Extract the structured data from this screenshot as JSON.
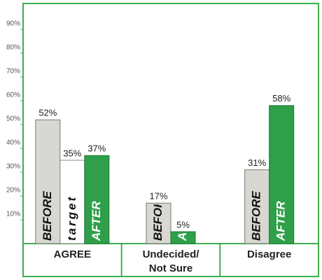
{
  "chart_data": {
    "type": "bar",
    "categories": [
      "AGREE",
      "Undecided/ Not Sure",
      "Disagree"
    ],
    "series": [
      {
        "name": "BEFORE",
        "color": "#d9d7d1",
        "values": [
          52,
          17,
          31
        ],
        "value_labels": [
          "52%",
          "17%",
          "31%"
        ]
      },
      {
        "name": "target",
        "color": "#ffffff",
        "values": [
          35,
          null,
          null
        ],
        "value_labels": [
          "35%",
          null,
          null
        ]
      },
      {
        "name": "AFTER",
        "color": "#2f9f4a",
        "values": [
          37,
          5,
          58
        ],
        "value_labels": [
          "37%",
          "5%",
          "58%"
        ]
      }
    ],
    "ylim": [
      0,
      100
    ],
    "yticks": [
      {
        "value": 10,
        "label": "10%"
      },
      {
        "value": 20,
        "label": "20%"
      },
      {
        "value": 30,
        "label": "30%"
      },
      {
        "value": 40,
        "label": "40%"
      },
      {
        "value": 50,
        "label": "50%"
      },
      {
        "value": 60,
        "label": "60%"
      },
      {
        "value": 70,
        "label": "70%"
      },
      {
        "value": 80,
        "label": "80%"
      },
      {
        "value": 90,
        "label": "90%"
      }
    ],
    "frame_color": "#3fae4f"
  }
}
